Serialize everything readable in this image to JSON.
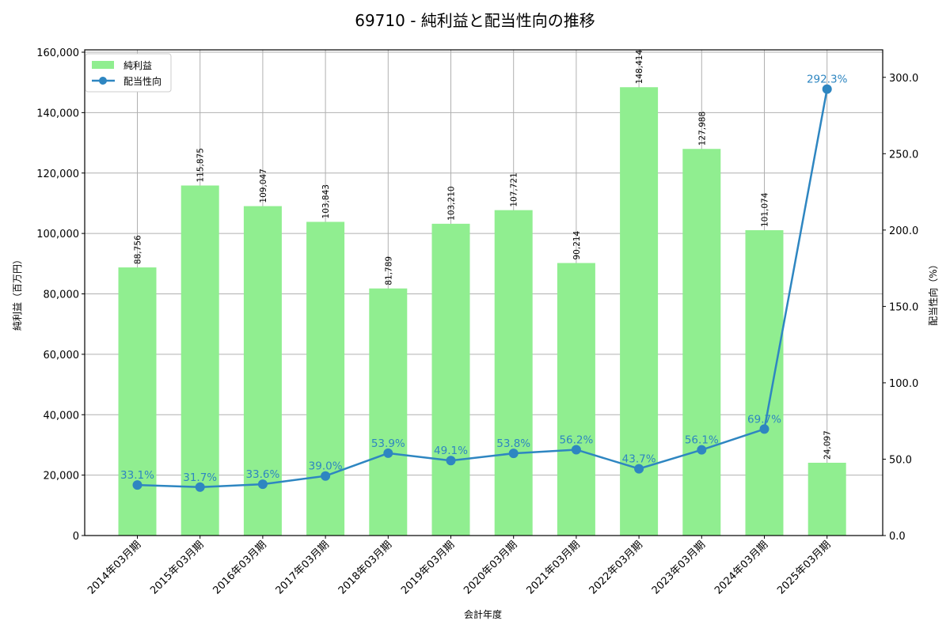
{
  "chart_data": {
    "type": "bar+line",
    "title": "69710 - 純利益と配当性向の推移",
    "xlabel": "会計年度",
    "ylabel_left": "純利益（百万円）",
    "ylabel_right": "配当性向（%）",
    "categories": [
      "2014年03月期",
      "2015年03月期",
      "2016年03月期",
      "2017年03月期",
      "2018年03月期",
      "2019年03月期",
      "2020年03月期",
      "2021年03月期",
      "2022年03月期",
      "2023年03月期",
      "2024年03月期",
      "2025年03月期"
    ],
    "series": [
      {
        "name": "純利益",
        "type": "bar",
        "axis": "left",
        "color": "#90EE90",
        "values": [
          88756,
          115875,
          109047,
          103843,
          81789,
          103210,
          107721,
          90214,
          148414,
          127988,
          101074,
          24097
        ],
        "labels": [
          "88,756",
          "115,875",
          "109,047",
          "103,843",
          "81,789",
          "103,210",
          "107,721",
          "90,214",
          "148,414",
          "127,988",
          "101,074",
          "24,097"
        ]
      },
      {
        "name": "配当性向",
        "type": "line",
        "axis": "right",
        "color": "#2E86C1",
        "values": [
          33.1,
          31.7,
          33.6,
          39.0,
          53.9,
          49.1,
          53.8,
          56.2,
          43.7,
          56.1,
          69.7,
          292.3
        ],
        "labels": [
          "33.1%",
          "31.7%",
          "33.6%",
          "39.0%",
          "53.9%",
          "49.1%",
          "53.8%",
          "56.2%",
          "43.7%",
          "56.1%",
          "69.7%",
          "292.3%"
        ]
      }
    ],
    "ylim_left": [
      0,
      160000
    ],
    "yticks_left": [
      "0",
      "20,000",
      "40,000",
      "60,000",
      "80,000",
      "100,000",
      "120,000",
      "140,000",
      "160,000"
    ],
    "ylim_right": [
      0,
      318
    ],
    "yticks_right": [
      "0.0",
      "50.0",
      "100.0",
      "150.0",
      "200.0",
      "250.0",
      "300.0"
    ],
    "grid": true,
    "legend_position": "upper left"
  }
}
